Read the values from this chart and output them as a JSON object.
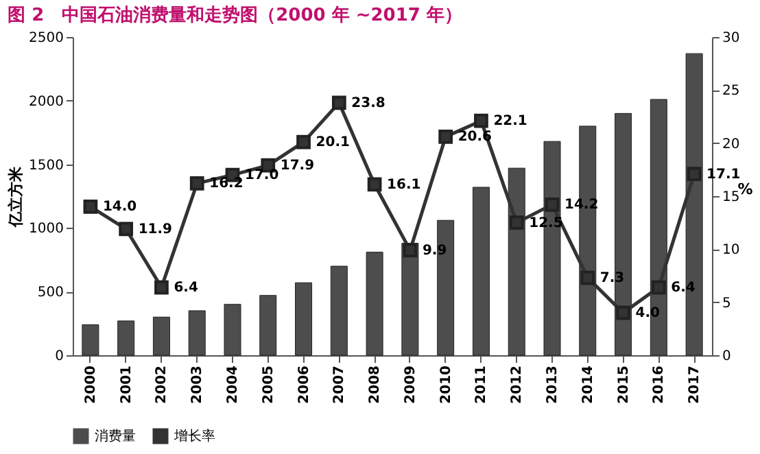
{
  "chart_data": {
    "type": "bar",
    "title": "图 2　中国石油消费量和走势图（2000 年 ~2017 年）",
    "ylabel": "亿立方米",
    "y2label": "%",
    "categories": [
      "2000",
      "2001",
      "2002",
      "2003",
      "2004",
      "2005",
      "2006",
      "2007",
      "2008",
      "2009",
      "2010",
      "2011",
      "2012",
      "2013",
      "2014",
      "2015",
      "2016",
      "2017"
    ],
    "ylim": [
      0,
      2500
    ],
    "yticks": [
      0,
      500,
      1000,
      1500,
      2000,
      2500
    ],
    "y2lim": [
      0,
      30
    ],
    "y2ticks": [
      0,
      5,
      10,
      15,
      20,
      25,
      30
    ],
    "legend": "bottom",
    "grid": false,
    "marker": "square",
    "series": [
      {
        "name": "消费量",
        "color": "#4d4d4d",
        "values": [
          240,
          270,
          300,
          350,
          400,
          470,
          570,
          700,
          810,
          880,
          1060,
          1320,
          1470,
          1680,
          1800,
          1900,
          2010,
          2370
        ]
      },
      {
        "name": "增长率",
        "type": "line",
        "axis": "y2",
        "color": "#333333",
        "values": [
          14.0,
          11.9,
          6.4,
          16.2,
          17.0,
          17.9,
          20.1,
          23.8,
          16.1,
          9.9,
          20.6,
          22.1,
          12.5,
          14.2,
          7.3,
          4.0,
          6.4,
          17.1
        ],
        "value_labels": [
          "14.0",
          "11.9",
          "6.4",
          "16.2",
          "17.0",
          "17.9",
          "20.1",
          "23.8",
          "16.1",
          "9.9",
          "20.6",
          "22.1",
          "12.5",
          "14.2",
          "7.3",
          "4.0",
          "6.4",
          "17.1"
        ]
      }
    ]
  }
}
